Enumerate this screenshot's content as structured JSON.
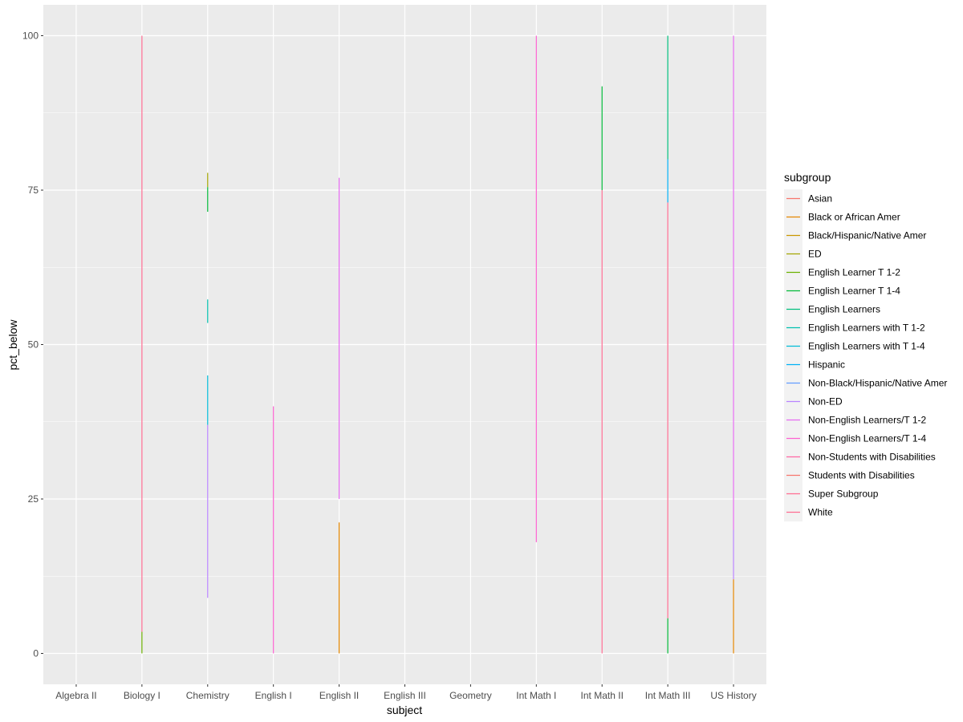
{
  "chart_data": {
    "type": "line",
    "xlabel": "subject",
    "ylabel": "pct_below",
    "categories": [
      "Algebra II",
      "Biology I",
      "Chemistry",
      "English I",
      "English II",
      "English III",
      "Geometry",
      "Int Math I",
      "Int Math II",
      "Int Math III",
      "US History"
    ],
    "y_ticks": [
      0,
      25,
      50,
      75,
      100
    ],
    "ylim": [
      -5,
      105
    ],
    "grid": true,
    "legend_placement": "right",
    "legend_title": "subgroup",
    "series": [
      {
        "name": "Asian",
        "color": "#F8766D"
      },
      {
        "name": "Black or African Amer",
        "color": "#E58700"
      },
      {
        "name": "Black/Hispanic/Native Amer",
        "color": "#C99800"
      },
      {
        "name": "ED",
        "color": "#A3A500"
      },
      {
        "name": "English Learner T 1-2",
        "color": "#6BB100"
      },
      {
        "name": "English Learner T 1-4",
        "color": "#00BA38"
      },
      {
        "name": "English Learners",
        "color": "#00BF7D"
      },
      {
        "name": "English Learners with T 1-2",
        "color": "#00C0AF"
      },
      {
        "name": "English Learners with T 1-4",
        "color": "#00BCD8"
      },
      {
        "name": "Hispanic",
        "color": "#00B0F6"
      },
      {
        "name": "Non-Black/Hispanic/Native Amer",
        "color": "#619CFF"
      },
      {
        "name": "Non-ED",
        "color": "#B983FF"
      },
      {
        "name": "Non-English Learners/T 1-2",
        "color": "#E76BF3"
      },
      {
        "name": "Non-English Learners/T 1-4",
        "color": "#FD61D1"
      },
      {
        "name": "Non-Students with Disabilities",
        "color": "#FF67A4"
      },
      {
        "name": "Students with Disabilities",
        "color": "#F8766D"
      },
      {
        "name": "Super Subgroup",
        "color": "#FF6C91"
      },
      {
        "name": "White",
        "color": "#FF6C91"
      }
    ],
    "segments": [
      {
        "category": "Biology I",
        "y0": 0,
        "y1": 3.5,
        "color": "#6BB100"
      },
      {
        "category": "Biology I",
        "y0": 3.5,
        "y1": 100,
        "color": "#FF6C91"
      },
      {
        "category": "Chemistry",
        "y0": 9,
        "y1": 37,
        "color": "#B983FF"
      },
      {
        "category": "Chemistry",
        "y0": 37,
        "y1": 45,
        "color": "#00BCD8"
      },
      {
        "category": "Chemistry",
        "y0": 53.5,
        "y1": 57.3,
        "color": "#00C0AF"
      },
      {
        "category": "Chemistry",
        "y0": 71.5,
        "y1": 75.5,
        "color": "#00BA38"
      },
      {
        "category": "Chemistry",
        "y0": 75.5,
        "y1": 77.8,
        "color": "#A3A500"
      },
      {
        "category": "English I",
        "y0": 0,
        "y1": 40,
        "color": "#FD61D1"
      },
      {
        "category": "English II",
        "y0": 0,
        "y1": 21.2,
        "color": "#E58700"
      },
      {
        "category": "English II",
        "y0": 25,
        "y1": 77,
        "color": "#E76BF3"
      },
      {
        "category": "Int Math I",
        "y0": 18,
        "y1": 100,
        "color": "#FD61D1"
      },
      {
        "category": "Int Math II",
        "y0": 0,
        "y1": 75,
        "color": "#FF6C91"
      },
      {
        "category": "Int Math II",
        "y0": 75,
        "y1": 91.8,
        "color": "#00BA38"
      },
      {
        "category": "Int Math III",
        "y0": 0,
        "y1": 5.7,
        "color": "#00BA38"
      },
      {
        "category": "Int Math III",
        "y0": 5.7,
        "y1": 73,
        "color": "#FF6C91"
      },
      {
        "category": "Int Math III",
        "y0": 73,
        "y1": 80,
        "color": "#00B0F6"
      },
      {
        "category": "Int Math III",
        "y0": 80,
        "y1": 100,
        "color": "#00BF7D"
      },
      {
        "category": "US History",
        "y0": 0,
        "y1": 12,
        "color": "#E58700"
      },
      {
        "category": "US History",
        "y0": 12,
        "y1": 20,
        "color": "#B983FF"
      },
      {
        "category": "US History",
        "y0": 20,
        "y1": 100,
        "color": "#E76BF3"
      }
    ]
  }
}
